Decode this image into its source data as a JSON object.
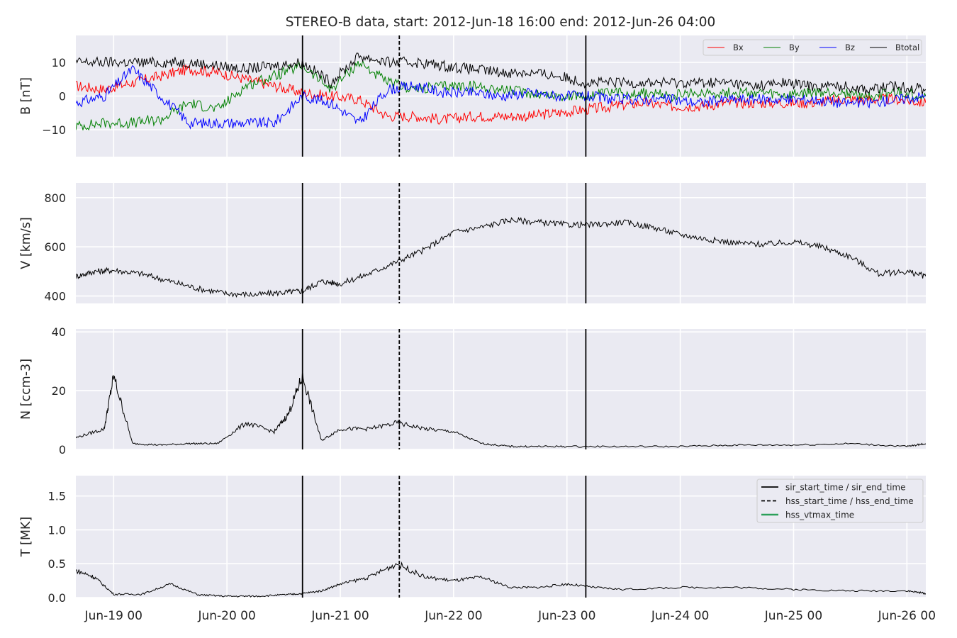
{
  "chart_data": {
    "type": "line",
    "title": "STEREO-B data, start: 2012-Jun-18 16:00  end: 2012-Jun-26 04:00",
    "x_axis": {
      "unit": "hours since 2012-Jun-18 16:00",
      "xlim": [
        "2012-06-18T16:00",
        "2012-06-26T04:00"
      ],
      "tick_labels": [
        "Jun-19 00",
        "Jun-20 00",
        "Jun-21 00",
        "Jun-22 00",
        "Jun-23 00",
        "Jun-24 00",
        "Jun-25 00",
        "Jun-26 00"
      ],
      "tick_dates": [
        "2012-06-19T00:00",
        "2012-06-20T00:00",
        "2012-06-21T00:00",
        "2012-06-22T00:00",
        "2012-06-23T00:00",
        "2012-06-24T00:00",
        "2012-06-25T00:00",
        "2012-06-26T00:00"
      ]
    },
    "event_lines": [
      {
        "name": "sir_start_time / sir_end_time",
        "style": "solid",
        "color": "#000000",
        "times": [
          "2012-06-20T16:00",
          "2012-06-23T04:00"
        ]
      },
      {
        "name": "hss_start_time / hss_end_time",
        "style": "dashed",
        "color": "#000000",
        "times": [
          "2012-06-21T12:30"
        ]
      },
      {
        "name": "hss_vtmax_time",
        "style": "solid",
        "color": "#2ca05a",
        "times": []
      }
    ],
    "panels": [
      {
        "ylabel": "B [nT]",
        "ylim": [
          -18,
          18
        ],
        "yticks": [
          -10,
          0,
          10
        ],
        "ytick_labels": [
          "−10",
          "0",
          "10"
        ],
        "legend": "top-right",
        "series": [
          {
            "name": "Bx",
            "color": "#ff0000",
            "x": [
              "2012-06-18T16:00",
              "2012-06-18T22:00",
              "2012-06-19T04:00",
              "2012-06-19T10:00",
              "2012-06-19T16:00",
              "2012-06-19T22:00",
              "2012-06-20T04:00",
              "2012-06-20T10:00",
              "2012-06-20T16:00",
              "2012-06-20T22:00",
              "2012-06-21T04:00",
              "2012-06-21T10:00",
              "2012-06-21T16:00",
              "2012-06-21T22:00",
              "2012-06-22T04:00",
              "2012-06-22T10:00",
              "2012-06-22T16:00",
              "2012-06-22T22:00",
              "2012-06-23T04:00",
              "2012-06-23T10:00",
              "2012-06-23T16:00",
              "2012-06-23T22:00",
              "2012-06-24T04:00",
              "2012-06-24T10:00",
              "2012-06-24T16:00",
              "2012-06-24T22:00",
              "2012-06-25T04:00",
              "2012-06-25T10:00",
              "2012-06-25T16:00",
              "2012-06-25T22:00",
              "2012-06-26T04:00"
            ],
            "y": [
              3,
              2,
              4,
              6,
              8,
              7,
              5,
              3,
              1,
              0,
              -1,
              -6,
              -6,
              -7,
              -6,
              -6,
              -6,
              -5,
              -4,
              -3,
              -2,
              -3,
              -3,
              -2,
              -2,
              -2,
              -2,
              -1,
              -1,
              -1,
              -2
            ]
          },
          {
            "name": "By",
            "color": "#008000",
            "x": [
              "2012-06-18T16:00",
              "2012-06-18T22:00",
              "2012-06-19T04:00",
              "2012-06-19T10:00",
              "2012-06-19T16:00",
              "2012-06-19T22:00",
              "2012-06-20T04:00",
              "2012-06-20T10:00",
              "2012-06-20T16:00",
              "2012-06-20T22:00",
              "2012-06-21T04:00",
              "2012-06-21T10:00",
              "2012-06-21T16:00",
              "2012-06-21T22:00",
              "2012-06-22T04:00",
              "2012-06-22T10:00",
              "2012-06-22T16:00",
              "2012-06-22T22:00",
              "2012-06-23T04:00",
              "2012-06-23T10:00",
              "2012-06-23T16:00",
              "2012-06-23T22:00",
              "2012-06-24T04:00",
              "2012-06-24T10:00",
              "2012-06-24T16:00",
              "2012-06-24T22:00",
              "2012-06-25T04:00",
              "2012-06-25T10:00",
              "2012-06-25T16:00",
              "2012-06-25T22:00",
              "2012-06-26T04:00"
            ],
            "y": [
              -9,
              -8,
              -8,
              -7,
              -2,
              -4,
              3,
              6,
              9,
              2,
              10,
              4,
              2,
              3,
              3,
              2,
              1,
              0,
              0,
              1,
              1,
              0,
              1,
              1,
              1,
              0,
              1,
              1,
              0,
              1,
              0
            ]
          },
          {
            "name": "Bz",
            "color": "#0000ff",
            "x": [
              "2012-06-18T16:00",
              "2012-06-18T22:00",
              "2012-06-19T04:00",
              "2012-06-19T10:00",
              "2012-06-19T16:00",
              "2012-06-19T22:00",
              "2012-06-20T04:00",
              "2012-06-20T10:00",
              "2012-06-20T16:00",
              "2012-06-20T22:00",
              "2012-06-21T04:00",
              "2012-06-21T10:00",
              "2012-06-21T16:00",
              "2012-06-21T22:00",
              "2012-06-22T04:00",
              "2012-06-22T10:00",
              "2012-06-22T16:00",
              "2012-06-22T22:00",
              "2012-06-23T04:00",
              "2012-06-23T10:00",
              "2012-06-23T16:00",
              "2012-06-23T22:00",
              "2012-06-24T04:00",
              "2012-06-24T10:00",
              "2012-06-24T16:00",
              "2012-06-24T22:00",
              "2012-06-25T04:00",
              "2012-06-25T10:00",
              "2012-06-25T16:00",
              "2012-06-25T22:00",
              "2012-06-26T04:00"
            ],
            "y": [
              -2,
              0,
              8,
              0,
              -8,
              -8,
              -8,
              -8,
              0,
              -2,
              -8,
              2,
              3,
              1,
              1,
              0,
              1,
              0,
              0,
              -1,
              -1,
              -1,
              -2,
              -1,
              -1,
              -1,
              -1,
              -2,
              -2,
              -1,
              0
            ]
          },
          {
            "name": "Btotal",
            "color": "#000000",
            "x": [
              "2012-06-18T16:00",
              "2012-06-18T22:00",
              "2012-06-19T04:00",
              "2012-06-19T10:00",
              "2012-06-19T16:00",
              "2012-06-19T22:00",
              "2012-06-20T04:00",
              "2012-06-20T10:00",
              "2012-06-20T16:00",
              "2012-06-20T22:00",
              "2012-06-21T04:00",
              "2012-06-21T10:00",
              "2012-06-21T16:00",
              "2012-06-21T22:00",
              "2012-06-22T04:00",
              "2012-06-22T10:00",
              "2012-06-22T16:00",
              "2012-06-22T22:00",
              "2012-06-23T04:00",
              "2012-06-23T10:00",
              "2012-06-23T16:00",
              "2012-06-23T22:00",
              "2012-06-24T04:00",
              "2012-06-24T10:00",
              "2012-06-24T16:00",
              "2012-06-24T22:00",
              "2012-06-25T04:00",
              "2012-06-25T10:00",
              "2012-06-25T16:00",
              "2012-06-25T22:00",
              "2012-06-26T04:00"
            ],
            "y": [
              10,
              10,
              10,
              10,
              10,
              9,
              8,
              9,
              10,
              4,
              12,
              10,
              10,
              9,
              8,
              7,
              7,
              6,
              4,
              4,
              4,
              4,
              4,
              4,
              3,
              4,
              3,
              3,
              2,
              3,
              2
            ]
          }
        ]
      },
      {
        "ylabel": "V [km/s]",
        "ylim": [
          370,
          860
        ],
        "yticks": [
          400,
          600,
          800
        ],
        "ytick_labels": [
          "400",
          "600",
          "800"
        ],
        "series": [
          {
            "name": "",
            "color": "#000000",
            "x": [
              "2012-06-18T16:00",
              "2012-06-18T20:00",
              "2012-06-19T00:00",
              "2012-06-19T06:00",
              "2012-06-19T12:00",
              "2012-06-19T18:00",
              "2012-06-20T00:00",
              "2012-06-20T06:00",
              "2012-06-20T12:00",
              "2012-06-20T16:00",
              "2012-06-20T20:00",
              "2012-06-21T00:00",
              "2012-06-21T06:00",
              "2012-06-21T12:00",
              "2012-06-21T18:00",
              "2012-06-22T00:00",
              "2012-06-22T06:00",
              "2012-06-22T12:00",
              "2012-06-22T18:00",
              "2012-06-23T00:00",
              "2012-06-23T06:00",
              "2012-06-23T12:00",
              "2012-06-23T18:00",
              "2012-06-24T00:00",
              "2012-06-24T06:00",
              "2012-06-24T12:00",
              "2012-06-24T18:00",
              "2012-06-25T00:00",
              "2012-06-25T06:00",
              "2012-06-25T12:00",
              "2012-06-25T18:00",
              "2012-06-26T00:00",
              "2012-06-26T04:00"
            ],
            "y": [
              480,
              500,
              505,
              490,
              460,
              430,
              410,
              405,
              415,
              420,
              460,
              450,
              490,
              540,
              590,
              660,
              680,
              710,
              700,
              690,
              690,
              700,
              680,
              650,
              630,
              615,
              610,
              620,
              600,
              560,
              490,
              500,
              480
            ]
          }
        ]
      },
      {
        "ylabel": "N [ccm-3]",
        "ylim": [
          0,
          41
        ],
        "yticks": [
          0,
          20,
          40
        ],
        "ytick_labels": [
          "0",
          "20",
          "40"
        ],
        "series": [
          {
            "name": "",
            "color": "#000000",
            "x": [
              "2012-06-18T16:00",
              "2012-06-18T22:00",
              "2012-06-19T00:00",
              "2012-06-19T04:00",
              "2012-06-19T10:00",
              "2012-06-19T16:00",
              "2012-06-19T22:00",
              "2012-06-20T04:00",
              "2012-06-20T10:00",
              "2012-06-20T13:00",
              "2012-06-20T16:00",
              "2012-06-20T20:00",
              "2012-06-21T00:00",
              "2012-06-21T06:00",
              "2012-06-21T12:00",
              "2012-06-21T18:00",
              "2012-06-22T00:00",
              "2012-06-22T06:00",
              "2012-06-22T12:00",
              "2012-06-22T18:00",
              "2012-06-23T00:00",
              "2012-06-23T12:00",
              "2012-06-24T00:00",
              "2012-06-24T12:00",
              "2012-06-25T00:00",
              "2012-06-25T12:00",
              "2012-06-26T00:00",
              "2012-06-26T04:00"
            ],
            "y": [
              4,
              7,
              25,
              2,
              1.5,
              2,
              2,
              9,
              6,
              12,
              25,
              3,
              7,
              7,
              9,
              7,
              6,
              2,
              1,
              1,
              1,
              1,
              1,
              1.5,
              1.5,
              2,
              1,
              2
            ]
          }
        ]
      },
      {
        "ylabel": "T [MK]",
        "ylim": [
          0,
          1.8
        ],
        "yticks": [
          0.0,
          0.5,
          1.0,
          1.5
        ],
        "ytick_labels": [
          "0.0",
          "0.5",
          "1.0",
          "1.5"
        ],
        "legend": "top-right",
        "series": [
          {
            "name": "",
            "color": "#000000",
            "x": [
              "2012-06-18T16:00",
              "2012-06-18T20:00",
              "2012-06-19T00:00",
              "2012-06-19T06:00",
              "2012-06-19T12:00",
              "2012-06-19T18:00",
              "2012-06-20T00:00",
              "2012-06-20T06:00",
              "2012-06-20T12:00",
              "2012-06-20T16:00",
              "2012-06-20T20:00",
              "2012-06-21T00:00",
              "2012-06-21T06:00",
              "2012-06-21T12:00",
              "2012-06-21T18:00",
              "2012-06-22T00:00",
              "2012-06-22T06:00",
              "2012-06-22T12:00",
              "2012-06-22T18:00",
              "2012-06-23T00:00",
              "2012-06-23T06:00",
              "2012-06-23T12:00",
              "2012-06-24T00:00",
              "2012-06-24T12:00",
              "2012-06-25T00:00",
              "2012-06-25T12:00",
              "2012-06-26T00:00",
              "2012-06-26T04:00"
            ],
            "y": [
              0.4,
              0.3,
              0.05,
              0.05,
              0.2,
              0.04,
              0.02,
              0.02,
              0.04,
              0.06,
              0.1,
              0.2,
              0.3,
              0.5,
              0.3,
              0.25,
              0.3,
              0.15,
              0.15,
              0.2,
              0.15,
              0.12,
              0.15,
              0.15,
              0.12,
              0.1,
              0.1,
              0.06
            ]
          }
        ]
      }
    ]
  }
}
